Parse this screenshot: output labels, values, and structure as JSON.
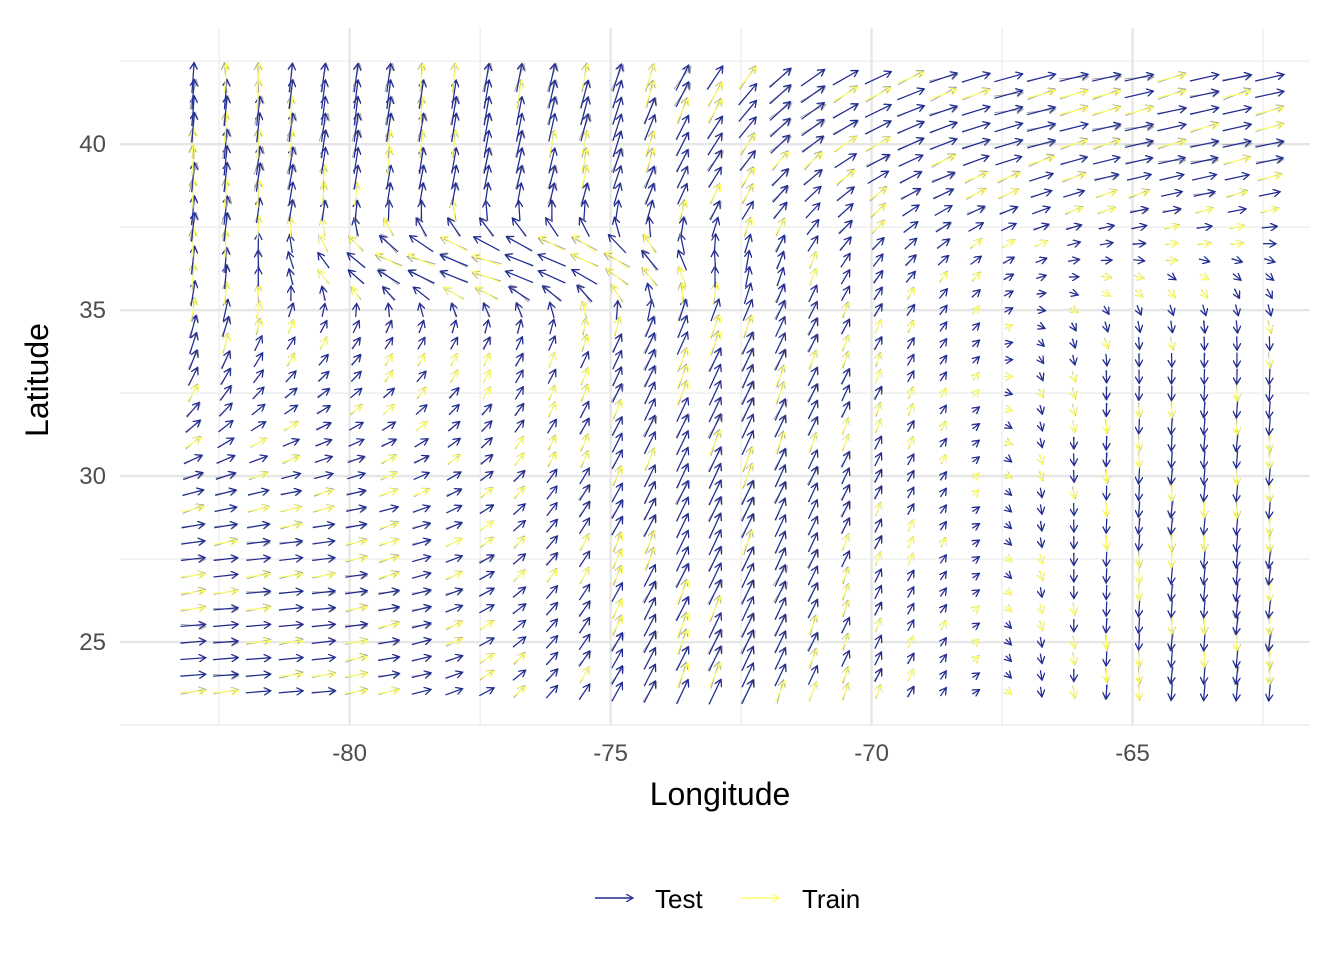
{
  "chart_data": {
    "type": "vector_field",
    "xlabel": "Longitude",
    "ylabel": "Latitude",
    "xlim": [
      -84.4,
      -61.6
    ],
    "ylim": [
      22.5,
      43.5
    ],
    "x_ticks": [
      -80,
      -75,
      -70,
      -65
    ],
    "x_tick_labels": [
      "-80",
      "-75",
      "-70",
      "-65"
    ],
    "y_ticks": [
      25,
      30,
      35,
      40
    ],
    "y_tick_labels": [
      "25",
      "30",
      "35",
      "40"
    ],
    "grid": true,
    "legend": {
      "position": "bottom",
      "entries": [
        {
          "label": "Test",
          "color": "#1f2a94"
        },
        {
          "label": "Train",
          "color": "#ffff66"
        }
      ]
    },
    "grid_spacing_deg": [
      0.625,
      0.5
    ],
    "x_range": [
      -83,
      -61.9
    ],
    "y_range": [
      23.5,
      42.0
    ],
    "colors": {
      "test": "#1f2a94",
      "train": "#ffff66",
      "truth": "#a6a6a6"
    }
  }
}
